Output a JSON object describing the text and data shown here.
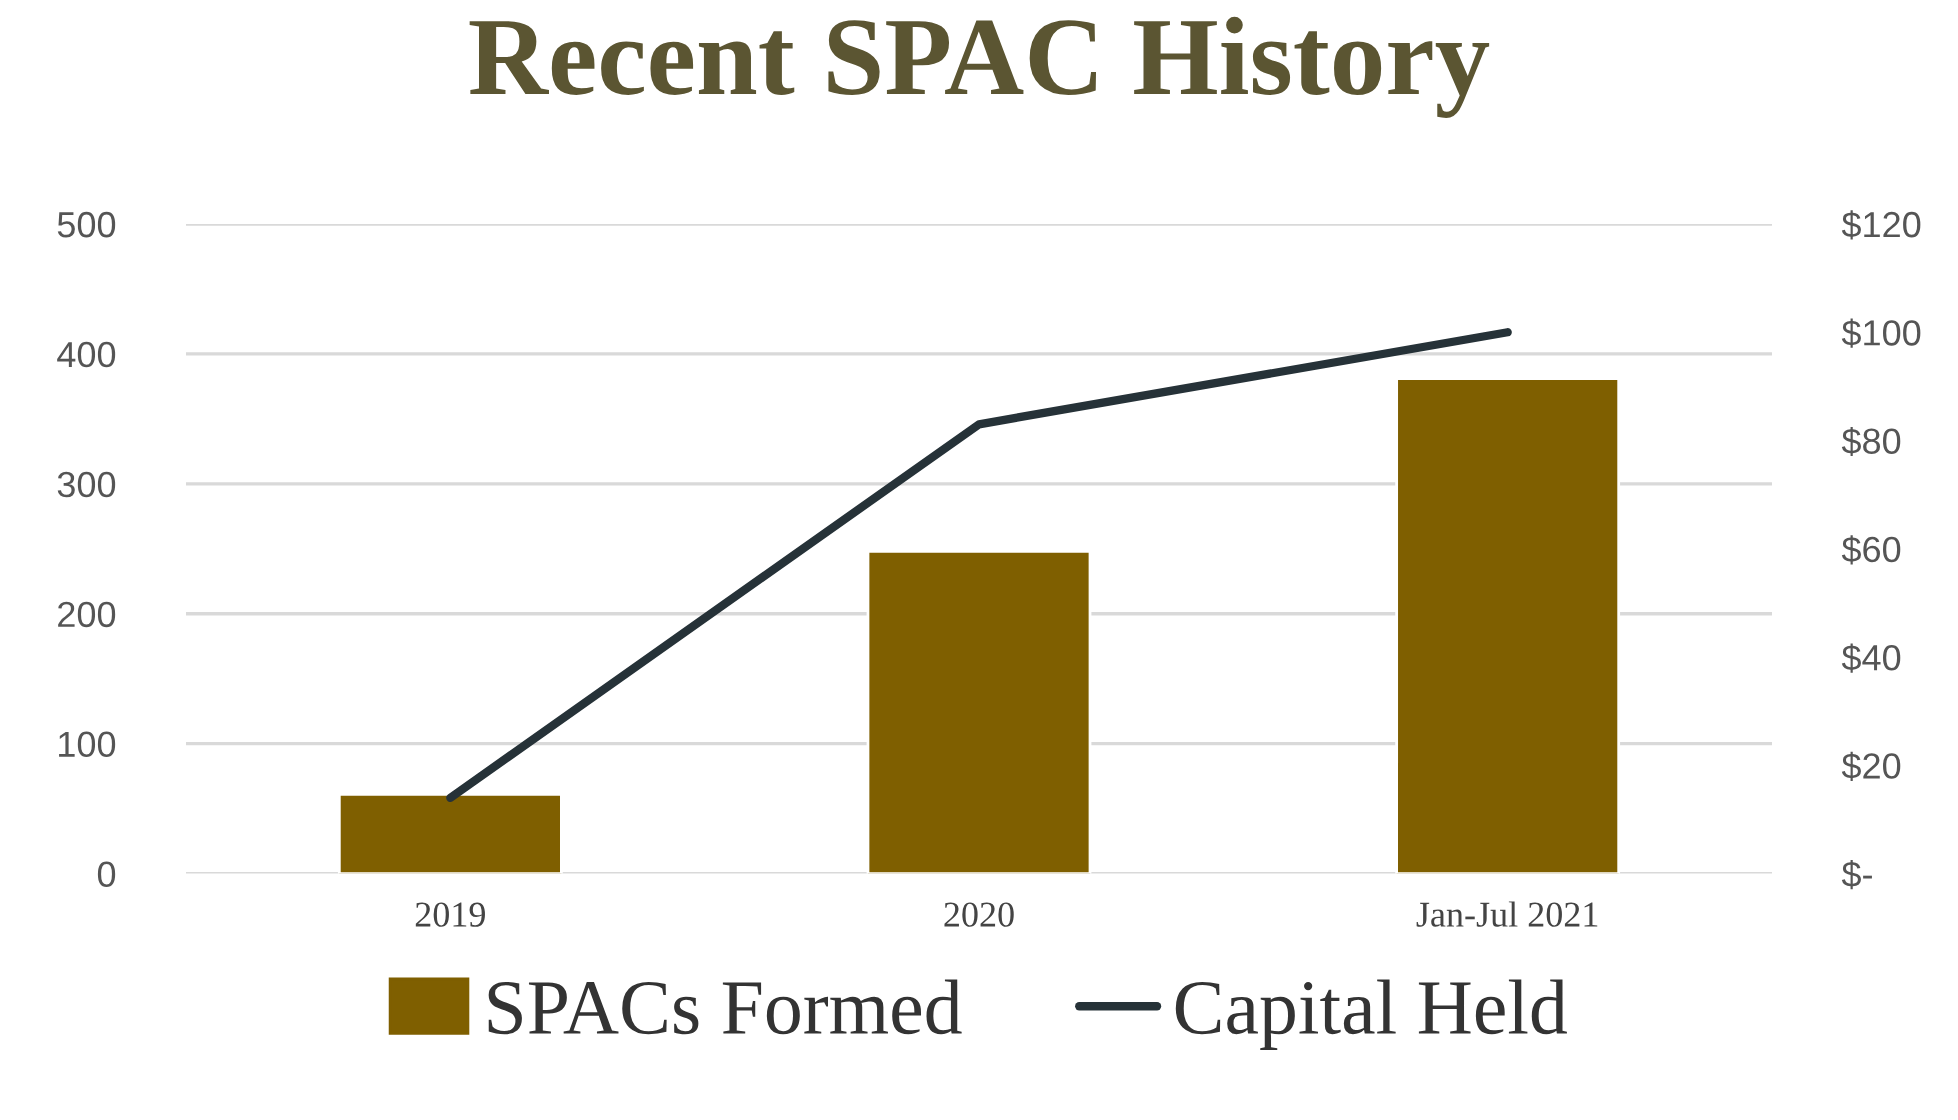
{
  "chart_data": {
    "type": "bar",
    "title": "Recent SPAC History",
    "categories": [
      "2019",
      "2020",
      "Jan-Jul 2021"
    ],
    "series": [
      {
        "name": "SPACs Formed",
        "color": "#7f5f00",
        "values": [
          61,
          248,
          381
        ]
      },
      {
        "name": "Capital Held",
        "type": "line",
        "axis": "y2",
        "color": "#263238",
        "values": [
          14,
          83,
          100
        ]
      }
    ],
    "ylim": [
      0,
      500
    ],
    "yticks": [
      0,
      100,
      200,
      300,
      400,
      500
    ],
    "y2lim": [
      0,
      120
    ],
    "y2ticks": [
      {
        "value": 0,
        "label": "$-"
      },
      {
        "value": 20,
        "label": "$20"
      },
      {
        "value": 40,
        "label": "$40"
      },
      {
        "value": 60,
        "label": "$60"
      },
      {
        "value": 80,
        "label": "$80"
      },
      {
        "value": 100,
        "label": "$100"
      },
      {
        "value": 120,
        "label": "$120"
      }
    ],
    "grid": "y",
    "legend": "bottom",
    "marker": "none",
    "line_style": "solid"
  }
}
